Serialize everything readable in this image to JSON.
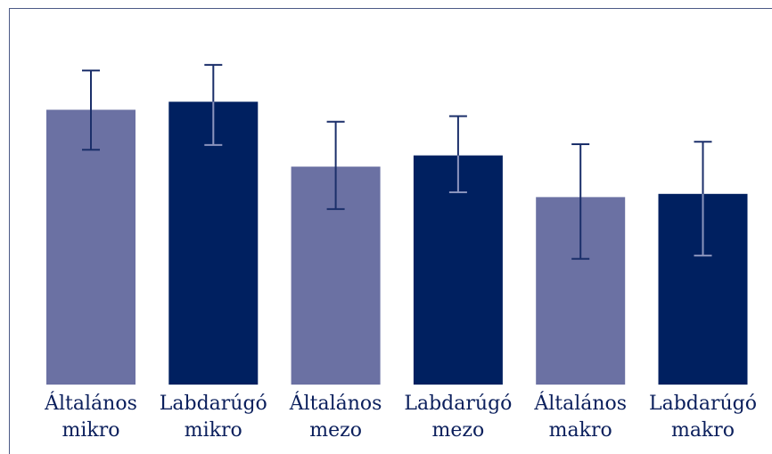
{
  "chart_data": {
    "type": "bar",
    "title": "",
    "xlabel": "",
    "ylabel": "",
    "categories": [
      [
        "Általános",
        "mikro"
      ],
      [
        "Labdarúgó",
        "mikro"
      ],
      [
        "Általános",
        "mezo"
      ],
      [
        "Labdarúgó",
        "mezo"
      ],
      [
        "Általános",
        "makro"
      ],
      [
        "Labdarúgó",
        "makro"
      ]
    ],
    "values": [
      3.43,
      3.53,
      2.72,
      2.86,
      2.34,
      2.38
    ],
    "error_low": [
      2.93,
      2.99,
      2.19,
      2.4,
      1.57,
      1.61
    ],
    "error_high": [
      3.92,
      3.99,
      3.28,
      3.35,
      3.0,
      3.03
    ],
    "ylim": [
      0,
      4.7
    ],
    "grid": false,
    "colors": [
      "#6b71a3",
      "#002060",
      "#6b71a3",
      "#002060",
      "#6b71a3",
      "#002060"
    ],
    "errorbar_color": "#1b2f6a"
  }
}
